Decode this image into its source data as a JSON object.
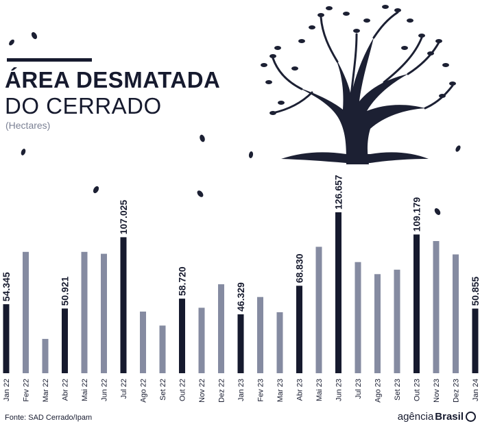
{
  "header": {
    "title_line1": "ÁREA DESMATADA",
    "title_line2": "DO CERRADO",
    "subtitle": "(Hectares)"
  },
  "footer": {
    "source": "Fonte: SAD Cerrado/Ipam",
    "brand_light": "agência",
    "brand_bold": "Brasil"
  },
  "colors": {
    "highlight": "#161a2e",
    "regular": "#858ba1",
    "decor": "#1c2033"
  },
  "decor": {
    "icons": [
      "tree-icon",
      "falling-leaf-icon"
    ]
  },
  "chart_data": {
    "type": "bar",
    "title": "ÁREA DESMATADA DO CERRADO",
    "ylabel": "(Hectares)",
    "grid": false,
    "legend": "none",
    "categories": [
      "Jan 22",
      "Fev 22",
      "Mar 22",
      "Abr 22",
      "Mai 22",
      "Jun 22",
      "Jul 22",
      "Ago 22",
      "Set 22",
      "Out 22",
      "Nov 22",
      "Dez 22",
      "Jan 23",
      "Fev 23",
      "Mar 23",
      "Abr 23",
      "Mai 23",
      "Jun 23",
      "Jul 23",
      "Ago 23",
      "Set 23",
      "Out 23",
      "Nov 23",
      "Dez 23",
      "Jan 24"
    ],
    "values": [
      54345,
      95500,
      27000,
      50921,
      95500,
      94000,
      107025,
      48500,
      37500,
      58720,
      51500,
      70000,
      46329,
      60000,
      48000,
      68830,
      99500,
      126657,
      87500,
      78000,
      81500,
      109179,
      104000,
      93500,
      50855
    ],
    "highlighted": [
      true,
      false,
      false,
      true,
      false,
      false,
      true,
      false,
      false,
      true,
      false,
      false,
      true,
      false,
      false,
      true,
      false,
      true,
      false,
      false,
      false,
      true,
      false,
      false,
      true
    ],
    "data_labels": [
      "54.345",
      "",
      "",
      "50.921",
      "",
      "",
      "107.025",
      "",
      "",
      "58.720",
      "",
      "",
      "46.329",
      "",
      "",
      "68.830",
      "",
      "126.657",
      "",
      "",
      "",
      "109.179",
      "",
      "",
      "50.855"
    ],
    "ylim": [
      0,
      130000
    ]
  }
}
